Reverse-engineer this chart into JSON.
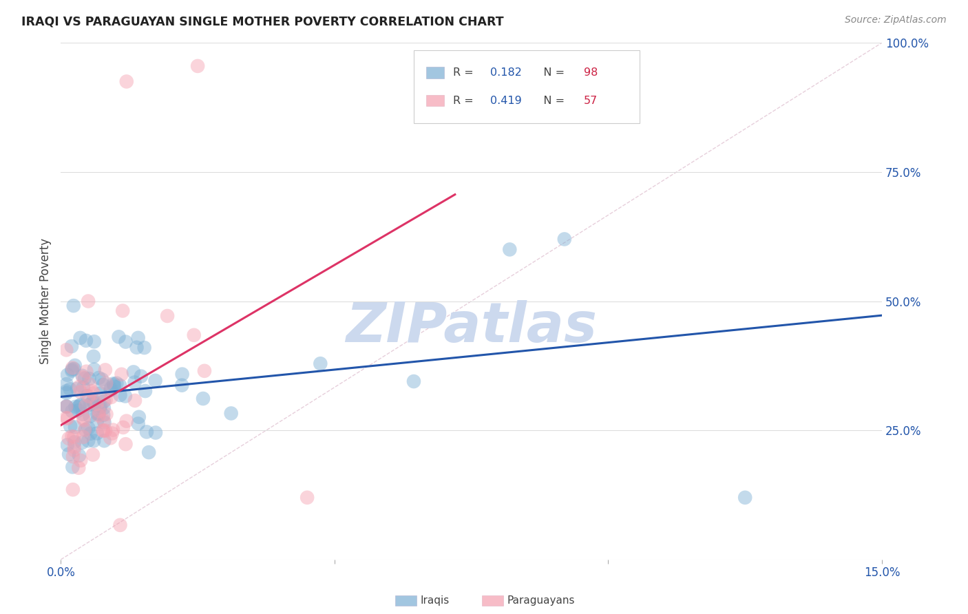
{
  "title": "IRAQI VS PARAGUAYAN SINGLE MOTHER POVERTY CORRELATION CHART",
  "source": "Source: ZipAtlas.com",
  "ylabel": "Single Mother Poverty",
  "xlim": [
    0,
    0.15
  ],
  "ylim": [
    0,
    1.0
  ],
  "xtick_vals": [
    0,
    0.05,
    0.1,
    0.15
  ],
  "xtick_labels": [
    "0.0%",
    "",
    "",
    "15.0%"
  ],
  "ytick_vals": [
    0.0,
    0.25,
    0.5,
    0.75,
    1.0
  ],
  "ytick_labels": [
    "",
    "25.0%",
    "50.0%",
    "75.0%",
    "100.0%"
  ],
  "iraqi_color": "#7bafd4",
  "paraguayan_color": "#f4a0b0",
  "iraqi_line_color": "#2255aa",
  "paraguayan_line_color": "#dd3366",
  "diagonal_color": "#ddbbcc",
  "background_color": "#ffffff",
  "watermark": "ZIPatlas",
  "watermark_color": "#ccd9ee",
  "legend_R1": "0.182",
  "legend_N1": "98",
  "legend_R2": "0.419",
  "legend_N2": "57",
  "legend_label1": "Iraqis",
  "legend_label2": "Paraguayans",
  "iraqi_blue_text": "#2255aa",
  "red_text": "#cc2244",
  "title_color": "#222222",
  "source_color": "#888888",
  "axis_text_color": "#2255aa",
  "ylabel_color": "#444444"
}
